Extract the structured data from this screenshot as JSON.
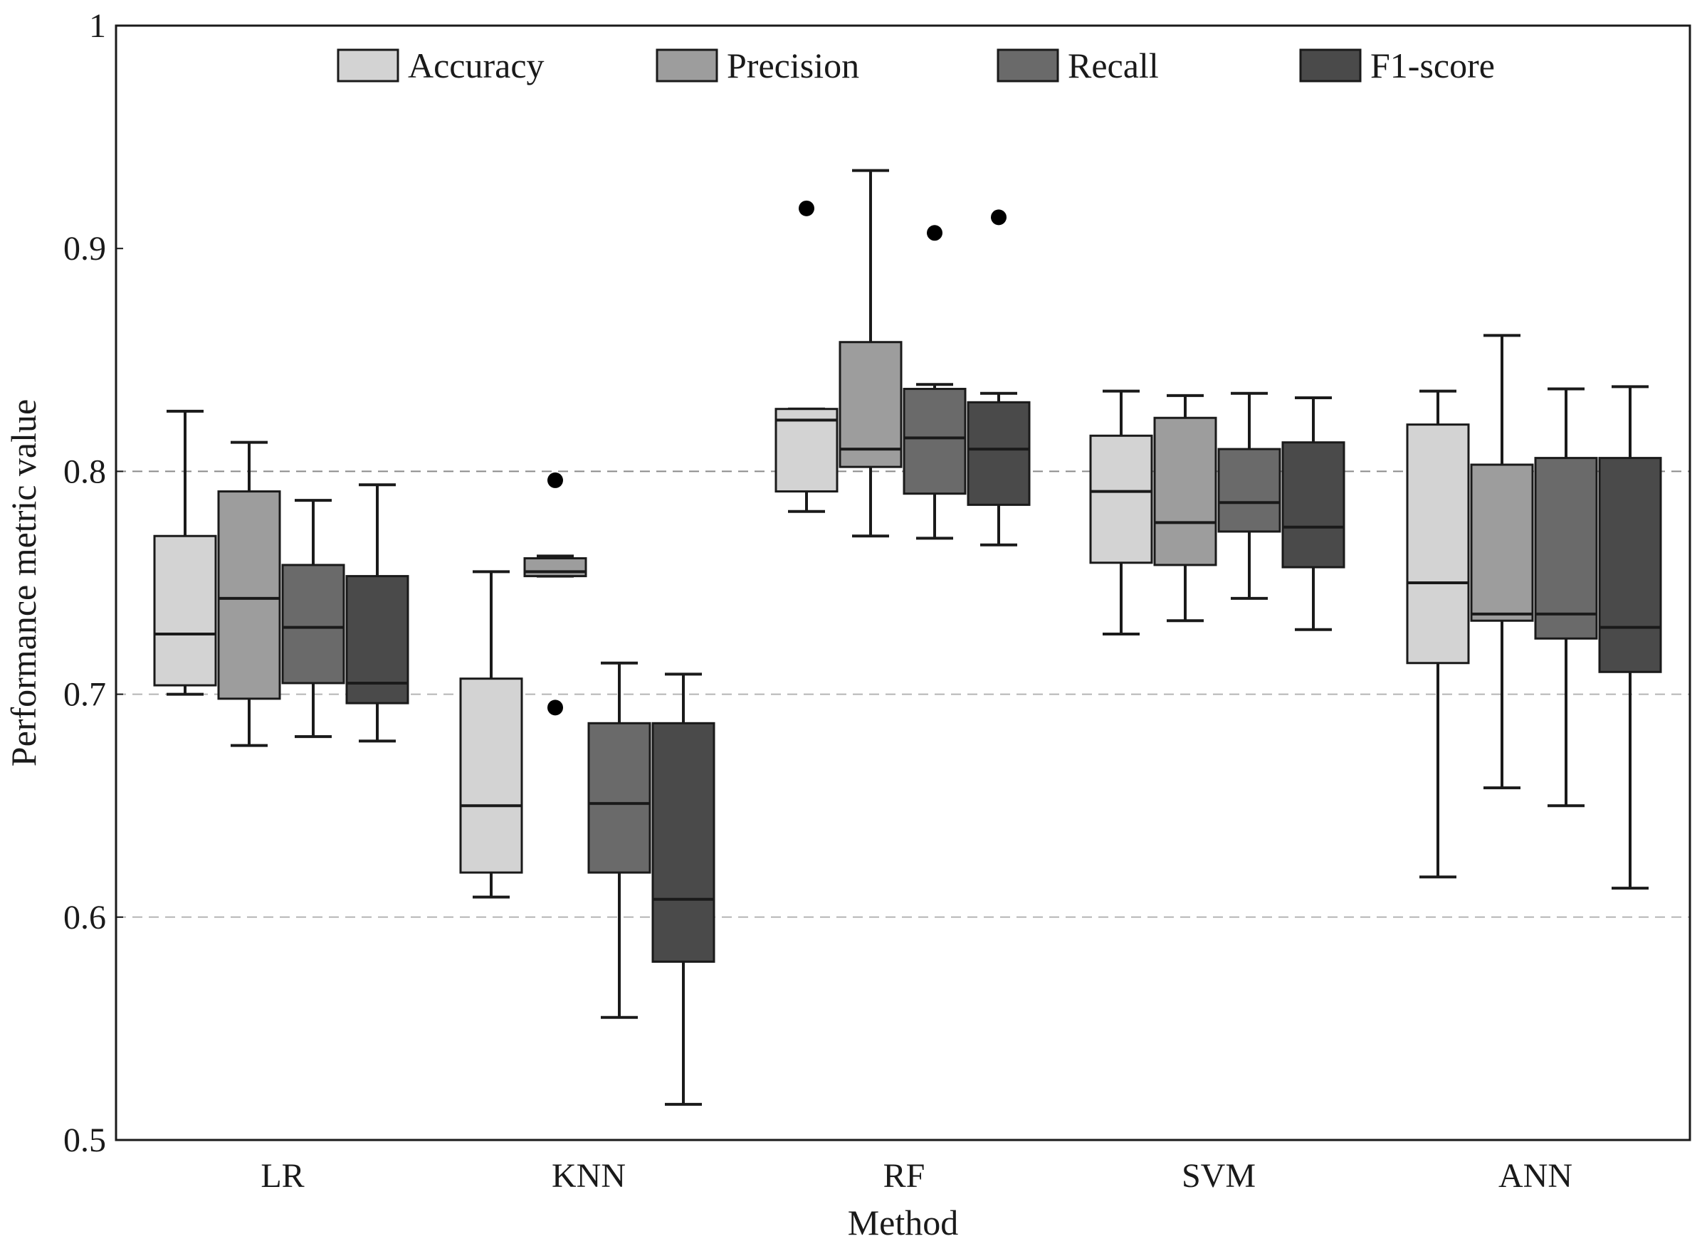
{
  "chart_data": {
    "type": "boxplot",
    "xlabel": "Method",
    "ylabel": "Performance metric value",
    "ylim": [
      0.5,
      1.0
    ],
    "yticks": [
      0.5,
      0.6,
      0.7,
      0.8,
      0.9,
      1.0
    ],
    "ytick_labels": [
      "0.5",
      "0.6",
      "0.7",
      "0.8",
      "0.9",
      "1"
    ],
    "grid": "horizontal dashed at 0.6, 0.7, 0.8",
    "legend_position": "top",
    "categories": [
      "LR",
      "KNN",
      "RF",
      "SVM",
      "ANN"
    ],
    "series": [
      {
        "name": "Accuracy",
        "color": "#d3d3d3",
        "boxes": [
          {
            "whisker_low": 0.7,
            "q1": 0.704,
            "median": 0.727,
            "q3": 0.771,
            "whisker_high": 0.827,
            "outliers": []
          },
          {
            "whisker_low": 0.609,
            "q1": 0.62,
            "median": 0.65,
            "q3": 0.707,
            "whisker_high": 0.755,
            "outliers": []
          },
          {
            "whisker_low": 0.782,
            "q1": 0.791,
            "median": 0.823,
            "q3": 0.828,
            "whisker_high": 0.828,
            "outliers": [
              0.918
            ]
          },
          {
            "whisker_low": 0.727,
            "q1": 0.759,
            "median": 0.791,
            "q3": 0.816,
            "whisker_high": 0.836,
            "outliers": []
          },
          {
            "whisker_low": 0.618,
            "q1": 0.714,
            "median": 0.75,
            "q3": 0.821,
            "whisker_high": 0.836,
            "outliers": []
          }
        ]
      },
      {
        "name": "Precision",
        "color": "#9d9d9d",
        "boxes": [
          {
            "whisker_low": 0.677,
            "q1": 0.698,
            "median": 0.743,
            "q3": 0.791,
            "whisker_high": 0.813,
            "outliers": []
          },
          {
            "whisker_low": 0.753,
            "q1": 0.753,
            "median": 0.755,
            "q3": 0.761,
            "whisker_high": 0.762,
            "outliers": [
              0.796,
              0.694
            ]
          },
          {
            "whisker_low": 0.771,
            "q1": 0.802,
            "median": 0.81,
            "q3": 0.858,
            "whisker_high": 0.935,
            "outliers": []
          },
          {
            "whisker_low": 0.733,
            "q1": 0.758,
            "median": 0.777,
            "q3": 0.824,
            "whisker_high": 0.834,
            "outliers": []
          },
          {
            "whisker_low": 0.658,
            "q1": 0.733,
            "median": 0.736,
            "q3": 0.803,
            "whisker_high": 0.861,
            "outliers": []
          }
        ]
      },
      {
        "name": "Recall",
        "color": "#6a6a6a",
        "boxes": [
          {
            "whisker_low": 0.681,
            "q1": 0.705,
            "median": 0.73,
            "q3": 0.758,
            "whisker_high": 0.787,
            "outliers": []
          },
          {
            "whisker_low": 0.555,
            "q1": 0.62,
            "median": 0.651,
            "q3": 0.687,
            "whisker_high": 0.714,
            "outliers": []
          },
          {
            "whisker_low": 0.77,
            "q1": 0.79,
            "median": 0.815,
            "q3": 0.837,
            "whisker_high": 0.839,
            "outliers": [
              0.907
            ]
          },
          {
            "whisker_low": 0.743,
            "q1": 0.773,
            "median": 0.786,
            "q3": 0.81,
            "whisker_high": 0.835,
            "outliers": []
          },
          {
            "whisker_low": 0.65,
            "q1": 0.725,
            "median": 0.736,
            "q3": 0.806,
            "whisker_high": 0.837,
            "outliers": []
          }
        ]
      },
      {
        "name": "F1-score",
        "color": "#4a4a4a",
        "boxes": [
          {
            "whisker_low": 0.679,
            "q1": 0.696,
            "median": 0.705,
            "q3": 0.753,
            "whisker_high": 0.794,
            "outliers": []
          },
          {
            "whisker_low": 0.516,
            "q1": 0.58,
            "median": 0.608,
            "q3": 0.687,
            "whisker_high": 0.709,
            "outliers": []
          },
          {
            "whisker_low": 0.767,
            "q1": 0.785,
            "median": 0.81,
            "q3": 0.831,
            "whisker_high": 0.835,
            "outliers": [
              0.914
            ]
          },
          {
            "whisker_low": 0.729,
            "q1": 0.757,
            "median": 0.775,
            "q3": 0.813,
            "whisker_high": 0.833,
            "outliers": []
          },
          {
            "whisker_low": 0.613,
            "q1": 0.71,
            "median": 0.73,
            "q3": 0.806,
            "whisker_high": 0.838,
            "outliers": []
          }
        ]
      }
    ]
  }
}
